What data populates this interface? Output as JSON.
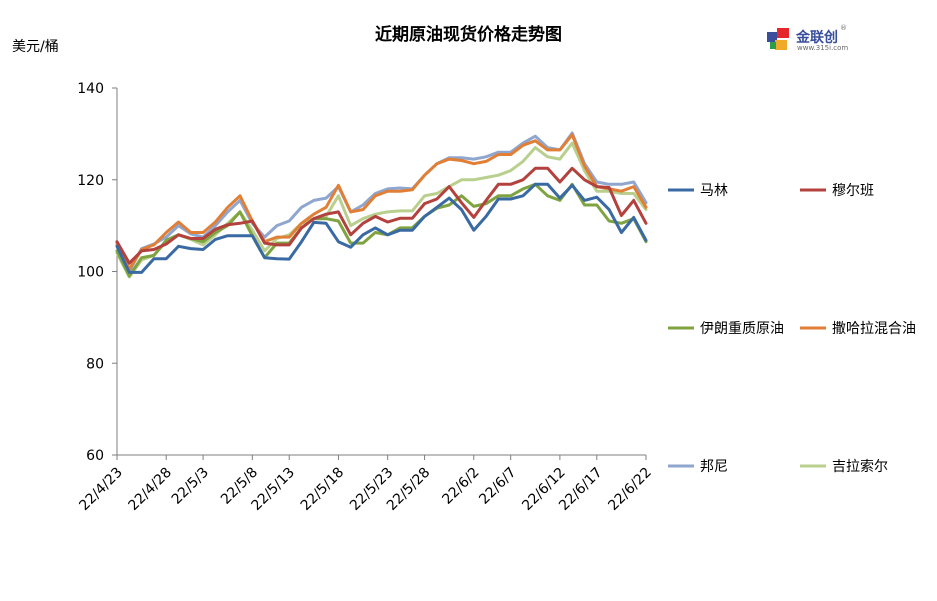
{
  "title": "近期原油现货价格走势图",
  "unit_label": "美元/桶",
  "logo": {
    "name": "金联创",
    "url": "www.315i.com",
    "reg": "®"
  },
  "colors": {
    "马林": "#3a6aa3",
    "穆尔班": "#b3413d",
    "伊朗重质原油": "#7fa33f",
    "撒哈拉混合油": "#e07f35",
    "邦尼": "#8fa6cf",
    "吉拉索尔": "#b9cf8d"
  },
  "chart_data": {
    "type": "line",
    "title": "近期原油现货价格走势图",
    "ylabel": "美元/桶",
    "xlabel": "",
    "ylim": [
      60,
      140
    ],
    "yticks": [
      60,
      80,
      100,
      120,
      140
    ],
    "grid": false,
    "legend_position": "right",
    "x_tick_labels": [
      "22/4/23",
      "22/4/28",
      "22/5/3",
      "22/5/8",
      "22/5/13",
      "22/5/18",
      "22/5/23",
      "22/5/28",
      "22/6/2",
      "22/6/7",
      "22/6/12",
      "22/6/17",
      "22/6/22"
    ],
    "x": [
      "22/4/22",
      "22/4/25",
      "22/4/26",
      "22/4/27",
      "22/4/28",
      "22/4/29",
      "22/5/2",
      "22/5/3",
      "22/5/4",
      "22/5/5",
      "22/5/6",
      "22/5/9",
      "22/5/10",
      "22/5/11",
      "22/5/12",
      "22/5/13",
      "22/5/16",
      "22/5/17",
      "22/5/18",
      "22/5/19",
      "22/5/20",
      "22/5/23",
      "22/5/24",
      "22/5/25",
      "22/5/26",
      "22/5/27",
      "22/5/30",
      "22/5/31",
      "22/6/1",
      "22/6/2",
      "22/6/3",
      "22/6/6",
      "22/6/7",
      "22/6/8",
      "22/6/9",
      "22/6/10",
      "22/6/13",
      "22/6/14",
      "22/6/15",
      "22/6/16",
      "22/6/17",
      "22/6/20",
      "22/6/21",
      "22/6/22"
    ],
    "series": [
      {
        "name": "马林",
        "values": [
          105.5,
          99.8,
          99.8,
          102.8,
          102.8,
          105.5,
          105.0,
          104.8,
          107.0,
          107.8,
          107.8,
          107.8,
          103.0,
          102.8,
          102.7,
          106.5,
          110.7,
          110.5,
          106.5,
          105.3,
          108.0,
          109.5,
          108.0,
          109.0,
          109.0,
          112.0,
          114.0,
          116.0,
          113.5,
          109.0,
          112.0,
          115.8,
          115.8,
          116.5,
          119.0,
          119.0,
          116.0,
          118.8,
          115.5,
          116.2,
          113.5,
          108.5,
          111.8,
          106.8
        ]
      },
      {
        "name": "穆尔班",
        "values": [
          106.5,
          101.8,
          104.5,
          104.8,
          106.0,
          108.0,
          107.2,
          107.2,
          109.2,
          110.2,
          110.5,
          111.0,
          106.2,
          105.8,
          105.8,
          109.5,
          111.5,
          112.5,
          113.0,
          108.0,
          110.5,
          112.0,
          110.8,
          111.6,
          111.6,
          114.8,
          115.8,
          118.5,
          115.0,
          111.8,
          115.5,
          119.0,
          119.0,
          120.0,
          122.5,
          122.5,
          119.5,
          122.5,
          120.0,
          118.5,
          118.3,
          112.2,
          115.5,
          110.5
        ]
      },
      {
        "name": "伊朗重质原油",
        "values": [
          104.5,
          99.0,
          103.0,
          103.5,
          106.8,
          108.0,
          107.2,
          106.5,
          108.5,
          110.0,
          113.0,
          107.8,
          103.0,
          106.2,
          106.2,
          109.5,
          111.5,
          111.5,
          111.0,
          106.2,
          106.2,
          108.5,
          108.0,
          109.5,
          109.5,
          112.0,
          113.8,
          114.5,
          116.5,
          114.2,
          114.8,
          116.5,
          116.5,
          118.0,
          119.0,
          116.5,
          115.5,
          119.0,
          114.5,
          114.5,
          111.0,
          110.5,
          111.5,
          106.5
        ]
      },
      {
        "name": "撒哈拉混合油",
        "values": [
          106.3,
          100.5,
          104.8,
          105.8,
          108.5,
          110.8,
          108.5,
          108.5,
          110.8,
          114.0,
          116.5,
          111.0,
          106.5,
          107.5,
          107.5,
          110.5,
          112.5,
          114.0,
          118.8,
          113.0,
          113.5,
          116.5,
          117.5,
          117.5,
          117.8,
          121.0,
          123.5,
          124.5,
          124.2,
          123.5,
          124.0,
          125.5,
          125.5,
          127.5,
          128.5,
          126.5,
          126.5,
          129.8,
          123.0,
          118.5,
          118.0,
          117.5,
          118.5,
          114.0
        ]
      },
      {
        "name": "邦尼",
        "values": [
          105.8,
          100.0,
          105.0,
          106.0,
          107.5,
          110.0,
          108.2,
          107.5,
          110.0,
          113.0,
          115.5,
          110.5,
          107.5,
          110.0,
          111.0,
          114.0,
          115.5,
          116.0,
          118.5,
          113.0,
          114.5,
          117.0,
          118.0,
          118.2,
          118.0,
          121.0,
          123.5,
          124.8,
          124.8,
          124.5,
          125.0,
          126.0,
          126.0,
          128.0,
          129.5,
          127.0,
          126.5,
          130.2,
          123.5,
          119.5,
          119.0,
          119.0,
          119.5,
          115.0
        ]
      },
      {
        "name": "吉拉索尔",
        "values": [
          104.0,
          98.8,
          102.5,
          103.5,
          106.5,
          108.0,
          107.0,
          105.8,
          108.0,
          110.5,
          113.0,
          109.0,
          104.5,
          107.2,
          108.0,
          110.5,
          111.5,
          112.0,
          116.5,
          110.0,
          111.5,
          112.5,
          113.0,
          113.2,
          113.2,
          116.5,
          117.0,
          118.5,
          120.0,
          120.0,
          120.5,
          121.0,
          122.0,
          124.0,
          127.0,
          125.0,
          124.5,
          128.0,
          122.0,
          117.5,
          117.5,
          117.0,
          117.0,
          113.5
        ]
      }
    ]
  }
}
